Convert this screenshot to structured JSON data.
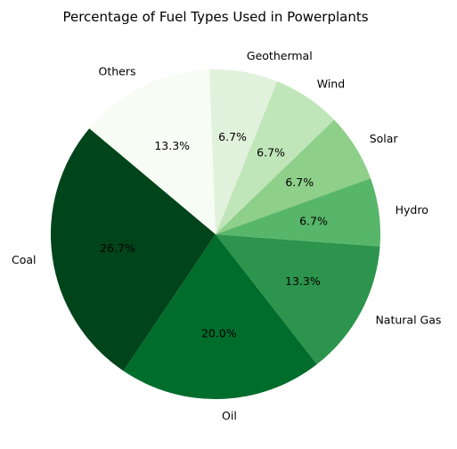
{
  "chart_data": {
    "type": "pie",
    "title": "Percentage of Fuel Types Used in Powerplants",
    "start_angle_deg": 140,
    "direction": "counterclockwise",
    "slices": [
      {
        "label": "Coal",
        "value": 26.7,
        "pct_label": "26.7%",
        "color": "#00441b"
      },
      {
        "label": "Oil",
        "value": 20.0,
        "pct_label": "20.0%",
        "color": "#006d2c"
      },
      {
        "label": "Natural Gas",
        "value": 13.3,
        "pct_label": "13.3%",
        "color": "#2c944c"
      },
      {
        "label": "Hydro",
        "value": 6.7,
        "pct_label": "6.7%",
        "color": "#58b66a"
      },
      {
        "label": "Solar",
        "value": 6.7,
        "pct_label": "6.7%",
        "color": "#8ecf8a"
      },
      {
        "label": "Wind",
        "value": 6.7,
        "pct_label": "6.7%",
        "color": "#bfe5b8"
      },
      {
        "label": "Geothermal",
        "value": 6.7,
        "pct_label": "6.7%",
        "color": "#e1f2dc"
      },
      {
        "label": "Others",
        "value": 13.3,
        "pct_label": "13.3%",
        "color": "#f7fcf5"
      }
    ]
  }
}
